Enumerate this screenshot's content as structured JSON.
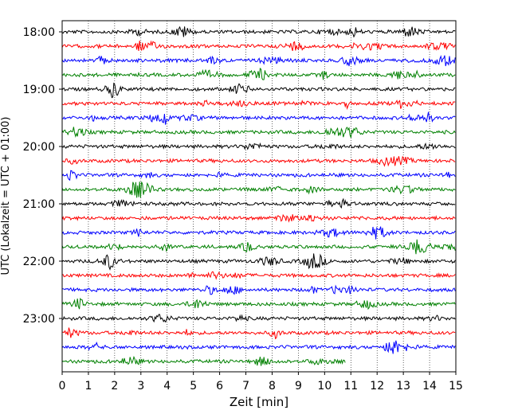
{
  "chart_data": {
    "type": "line",
    "title": "",
    "xlabel": "Zeit  [min]",
    "ylabel": "UTC (Lokalzeit = UTC + 01:00)",
    "xlim": [
      0,
      15
    ],
    "x_ticks": [
      0,
      1,
      2,
      3,
      4,
      5,
      6,
      7,
      8,
      9,
      10,
      11,
      12,
      13,
      14,
      15
    ],
    "y_ticks": [
      "18:00",
      "19:00",
      "20:00",
      "21:00",
      "22:00",
      "23:00"
    ],
    "grid": "vertical dotted",
    "colors": [
      "#000000",
      "#ff0000",
      "#0000ff",
      "#008000"
    ],
    "traces": [
      {
        "start": "18:00",
        "end_min": 15,
        "color": "#000000"
      },
      {
        "start": "18:15",
        "end_min": 15,
        "color": "#ff0000"
      },
      {
        "start": "18:30",
        "end_min": 15,
        "color": "#0000ff"
      },
      {
        "start": "18:45",
        "end_min": 15,
        "color": "#008000"
      },
      {
        "start": "19:00",
        "end_min": 15,
        "color": "#000000"
      },
      {
        "start": "19:15",
        "end_min": 15,
        "color": "#ff0000"
      },
      {
        "start": "19:30",
        "end_min": 15,
        "color": "#0000ff"
      },
      {
        "start": "19:45",
        "end_min": 15,
        "color": "#008000"
      },
      {
        "start": "20:00",
        "end_min": 15,
        "color": "#000000"
      },
      {
        "start": "20:15",
        "end_min": 15,
        "color": "#ff0000"
      },
      {
        "start": "20:30",
        "end_min": 15,
        "color": "#0000ff"
      },
      {
        "start": "20:45",
        "end_min": 15,
        "color": "#008000"
      },
      {
        "start": "21:00",
        "end_min": 15,
        "color": "#000000"
      },
      {
        "start": "21:15",
        "end_min": 15,
        "color": "#ff0000"
      },
      {
        "start": "21:30",
        "end_min": 15,
        "color": "#0000ff"
      },
      {
        "start": "21:45",
        "end_min": 15,
        "color": "#008000"
      },
      {
        "start": "22:00",
        "end_min": 15,
        "color": "#000000"
      },
      {
        "start": "22:15",
        "end_min": 15,
        "color": "#ff0000"
      },
      {
        "start": "22:30",
        "end_min": 15,
        "color": "#0000ff"
      },
      {
        "start": "22:45",
        "end_min": 15,
        "color": "#008000"
      },
      {
        "start": "23:00",
        "end_min": 15,
        "color": "#000000"
      },
      {
        "start": "23:15",
        "end_min": 15,
        "color": "#ff0000"
      },
      {
        "start": "23:30",
        "end_min": 15,
        "color": "#0000ff"
      },
      {
        "start": "23:45",
        "end_min": 10.8,
        "color": "#008000"
      }
    ]
  }
}
